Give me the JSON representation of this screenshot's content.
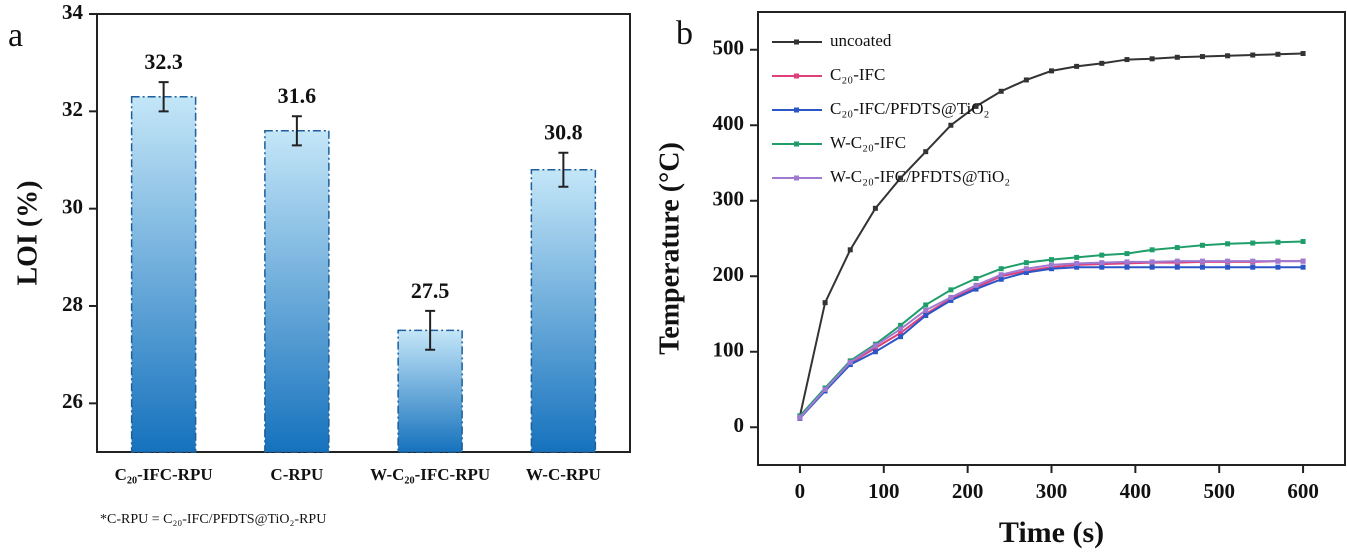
{
  "chart_data": [
    {
      "type": "bar",
      "panel_label": "a",
      "y_label": "LOI (%)",
      "categories": [
        "C₂₀-IFC-RPU",
        "C-RPU",
        "W-C₂₀-IFC-RPU",
        "W-C-RPU"
      ],
      "values": [
        32.3,
        31.6,
        27.5,
        30.8
      ],
      "errors": [
        0.3,
        0.3,
        0.4,
        0.35
      ],
      "colors": [
        "#c4e6f8",
        "#1672bd"
      ],
      "ylim": [
        25,
        34
      ],
      "yticks": [
        26,
        28,
        30,
        32,
        34
      ],
      "footnote": "*C-RPU = C₂₀-IFC/PFDTS@TiO₂-RPU"
    },
    {
      "type": "line",
      "panel_label": "b",
      "x_label": "Time (s)",
      "y_label": "Temperature (°C)",
      "x": [
        0,
        30,
        60,
        90,
        120,
        150,
        180,
        210,
        240,
        270,
        300,
        330,
        360,
        390,
        420,
        450,
        480,
        510,
        540,
        570,
        600
      ],
      "series": [
        {
          "name": "uncoated",
          "color": "#333333",
          "values": [
            15,
            165,
            235,
            290,
            330,
            365,
            400,
            425,
            445,
            460,
            472,
            478,
            482,
            487,
            488,
            490,
            491,
            492,
            493,
            494,
            495
          ]
        },
        {
          "name": "C₂₀-IFC",
          "color": "#e0407a",
          "values": [
            12,
            50,
            85,
            105,
            125,
            150,
            170,
            185,
            200,
            207,
            212,
            215,
            216,
            217,
            218,
            218,
            219,
            219,
            219,
            220,
            220
          ]
        },
        {
          "name": "C₂₀-IFC/PFDTS@TiO₂",
          "color": "#2a56c6",
          "values": [
            12,
            48,
            83,
            100,
            120,
            148,
            168,
            183,
            196,
            205,
            210,
            212,
            212,
            212,
            212,
            212,
            212,
            212,
            212,
            212,
            212
          ]
        },
        {
          "name": "W-C₂₀-IFC",
          "color": "#1f9e6a",
          "values": [
            15,
            52,
            88,
            110,
            135,
            162,
            182,
            197,
            210,
            218,
            222,
            225,
            228,
            230,
            235,
            238,
            241,
            243,
            244,
            245,
            246
          ]
        },
        {
          "name": "W-C₂₀-IFC/PFDTS@TiO₂",
          "color": "#a07ad0",
          "values": [
            13,
            50,
            86,
            108,
            130,
            155,
            172,
            188,
            202,
            210,
            215,
            217,
            218,
            219,
            219,
            220,
            220,
            220,
            220,
            220,
            220
          ]
        }
      ],
      "legend": "top-left",
      "xlim": [
        -50,
        650
      ],
      "xticks": [
        0,
        100,
        200,
        300,
        400,
        500,
        600
      ],
      "ylim": [
        -50,
        550
      ],
      "yticks": [
        0,
        100,
        200,
        300,
        400,
        500
      ]
    }
  ]
}
